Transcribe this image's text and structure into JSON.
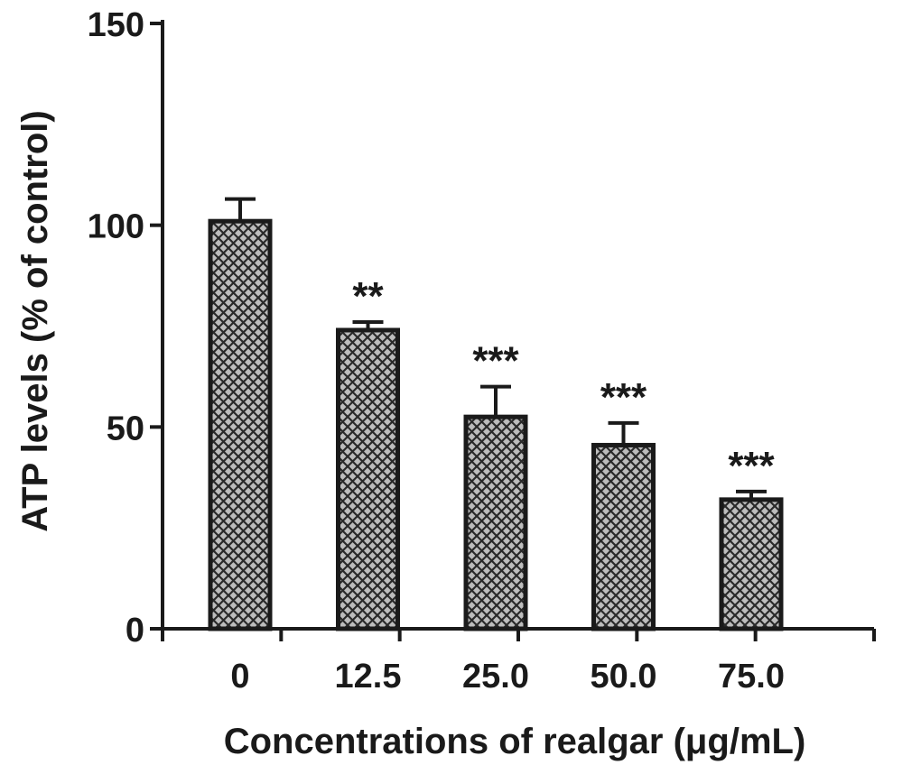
{
  "chart_data": {
    "type": "bar",
    "title": "",
    "xlabel": "Concentrations of realgar (μg/mL)",
    "ylabel": "ATP levels (% of control)",
    "categories": [
      "0",
      "12.5",
      "25.0",
      "50.0",
      "75.0"
    ],
    "values": [
      101,
      74,
      52.5,
      45.5,
      32
    ],
    "error": [
      5.5,
      2,
      7.5,
      5.5,
      2
    ],
    "significance": [
      "",
      "**",
      "***",
      "***",
      "***"
    ],
    "ylim": [
      0,
      150
    ],
    "yticks": [
      "0",
      "50",
      "100",
      "150"
    ],
    "ytick_values": [
      0,
      50,
      100,
      150
    ],
    "bar_fill": "#bdbdbd",
    "bar_edge": "#1a1a1a",
    "bar_pattern": "crosshatch",
    "grid": false,
    "legend": "none"
  }
}
